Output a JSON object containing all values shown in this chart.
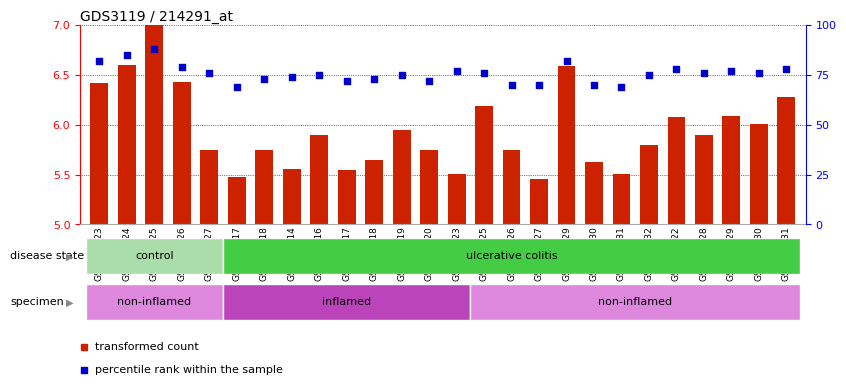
{
  "title": "GDS3119 / 214291_at",
  "samples": [
    "GSM240023",
    "GSM240024",
    "GSM240025",
    "GSM240026",
    "GSM240027",
    "GSM239617",
    "GSM239618",
    "GSM239714",
    "GSM239716",
    "GSM239717",
    "GSM239718",
    "GSM239719",
    "GSM239720",
    "GSM239723",
    "GSM239725",
    "GSM239726",
    "GSM239727",
    "GSM239729",
    "GSM239730",
    "GSM239731",
    "GSM239732",
    "GSM240022",
    "GSM240028",
    "GSM240029",
    "GSM240030",
    "GSM240031"
  ],
  "bar_values": [
    6.42,
    6.6,
    7.0,
    6.43,
    5.75,
    5.48,
    5.75,
    5.56,
    5.9,
    5.55,
    5.65,
    5.95,
    5.75,
    5.51,
    6.19,
    5.75,
    5.46,
    6.59,
    5.63,
    5.51,
    5.8,
    6.08,
    5.9,
    6.09,
    6.01,
    6.28
  ],
  "percentile_values": [
    82,
    85,
    88,
    79,
    76,
    69,
    73,
    74,
    75,
    72,
    73,
    75,
    72,
    77,
    76,
    70,
    70,
    82,
    70,
    69,
    75,
    78,
    76,
    77,
    76,
    78
  ],
  "ylim_left": [
    5.0,
    7.0
  ],
  "ylim_right": [
    0,
    100
  ],
  "yticks_left": [
    5.0,
    5.5,
    6.0,
    6.5,
    7.0
  ],
  "yticks_right": [
    0,
    25,
    50,
    75,
    100
  ],
  "bar_color": "#cc2200",
  "dot_color": "#0000cc",
  "bg_color": "#ffffff",
  "disease_state_groups": [
    {
      "label": "control",
      "start": 0,
      "end": 4,
      "color": "#aaddaa"
    },
    {
      "label": "ulcerative colitis",
      "start": 5,
      "end": 25,
      "color": "#44cc44"
    }
  ],
  "specimen_groups": [
    {
      "label": "non-inflamed",
      "start": 0,
      "end": 4,
      "color": "#dd88dd"
    },
    {
      "label": "inflamed",
      "start": 5,
      "end": 13,
      "color": "#bb44bb"
    },
    {
      "label": "non-inflamed",
      "start": 14,
      "end": 25,
      "color": "#dd88dd"
    }
  ],
  "legend_items": [
    {
      "label": "transformed count",
      "color": "#cc2200"
    },
    {
      "label": "percentile rank within the sample",
      "color": "#0000cc"
    }
  ],
  "title_fontsize": 10,
  "tick_fontsize": 6.5,
  "label_fontsize": 8,
  "group_label_fontsize": 8
}
